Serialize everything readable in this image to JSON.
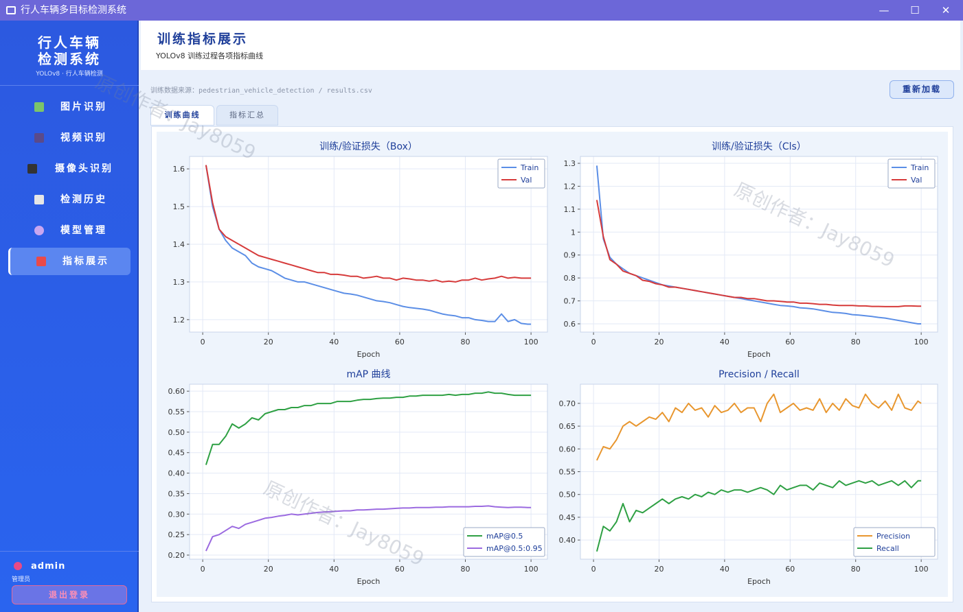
{
  "window": {
    "title": "行人车辆多目标检测系统"
  },
  "sidebar": {
    "brand_line1": "行人车辆",
    "brand_line2": "检测系统",
    "brand_sub": "YOLOv8 · 行人车辆检测",
    "nav": [
      "图片识别",
      "视频识别",
      "摄像头识别",
      "检测历史",
      "模型管理",
      "指标展示"
    ],
    "user": "admin",
    "role": "管理员",
    "logout": "退出登录"
  },
  "header": {
    "title": "训练指标展示",
    "subtitle": "YOLOv8 训练过程各项指标曲线"
  },
  "source": "训练数据来源：pedestrian_vehicle_detection / results.csv",
  "reload": "重新加载",
  "tabs": [
    "训练曲线",
    "指标汇总"
  ],
  "watermark": "原创作者：Jay8059",
  "chart_data": [
    {
      "type": "line",
      "title": "训练/验证损失（Box）",
      "x_label": "Epoch",
      "legend": "upper right",
      "grid": true,
      "x": [
        1,
        3,
        5,
        7,
        9,
        11,
        13,
        15,
        17,
        19,
        21,
        23,
        25,
        27,
        29,
        31,
        33,
        35,
        37,
        39,
        41,
        43,
        45,
        47,
        49,
        51,
        53,
        55,
        57,
        59,
        61,
        63,
        65,
        67,
        69,
        71,
        73,
        75,
        77,
        79,
        81,
        83,
        85,
        87,
        89,
        91,
        93,
        95,
        97,
        99,
        100
      ],
      "xlim": [
        -4,
        105
      ],
      "xticks": [
        0,
        20,
        40,
        60,
        80,
        100
      ],
      "ylim": [
        1.167,
        1.633
      ],
      "yticks": [
        1.2,
        1.3,
        1.4,
        1.5,
        1.6
      ],
      "series": [
        {
          "name": "Train",
          "color": "#5b8ee6",
          "values": [
            1.61,
            1.5,
            1.44,
            1.41,
            1.39,
            1.38,
            1.37,
            1.35,
            1.34,
            1.335,
            1.33,
            1.32,
            1.31,
            1.305,
            1.3,
            1.3,
            1.295,
            1.29,
            1.285,
            1.28,
            1.275,
            1.27,
            1.268,
            1.265,
            1.26,
            1.255,
            1.25,
            1.248,
            1.245,
            1.24,
            1.235,
            1.232,
            1.23,
            1.228,
            1.225,
            1.22,
            1.215,
            1.212,
            1.21,
            1.205,
            1.205,
            1.2,
            1.198,
            1.195,
            1.195,
            1.215,
            1.195,
            1.2,
            1.19,
            1.188,
            1.188
          ]
        },
        {
          "name": "Val",
          "color": "#d63a3a",
          "values": [
            1.61,
            1.51,
            1.44,
            1.42,
            1.41,
            1.4,
            1.39,
            1.38,
            1.37,
            1.365,
            1.36,
            1.355,
            1.35,
            1.345,
            1.34,
            1.335,
            1.33,
            1.325,
            1.325,
            1.32,
            1.32,
            1.318,
            1.315,
            1.315,
            1.31,
            1.312,
            1.315,
            1.31,
            1.31,
            1.305,
            1.31,
            1.308,
            1.305,
            1.305,
            1.302,
            1.305,
            1.3,
            1.302,
            1.3,
            1.305,
            1.305,
            1.31,
            1.305,
            1.308,
            1.31,
            1.315,
            1.31,
            1.312,
            1.31,
            1.31,
            1.31
          ]
        }
      ]
    },
    {
      "type": "line",
      "title": "训练/验证损失（Cls）",
      "x_label": "Epoch",
      "legend": "upper right",
      "grid": true,
      "x": [
        1,
        3,
        5,
        7,
        9,
        11,
        13,
        15,
        17,
        19,
        21,
        23,
        25,
        27,
        29,
        31,
        33,
        35,
        37,
        39,
        41,
        43,
        45,
        47,
        49,
        51,
        53,
        55,
        57,
        59,
        61,
        63,
        65,
        67,
        69,
        71,
        73,
        75,
        77,
        79,
        81,
        83,
        85,
        87,
        89,
        91,
        93,
        95,
        97,
        99,
        100
      ],
      "xlim": [
        -4,
        105
      ],
      "xticks": [
        0,
        20,
        40,
        60,
        80,
        100
      ],
      "ylim": [
        0.564,
        1.33
      ],
      "yticks": [
        0.6,
        0.7,
        0.8,
        0.9,
        1.0,
        1.1,
        1.2,
        1.3
      ],
      "series": [
        {
          "name": "Train",
          "color": "#5b8ee6",
          "values": [
            1.29,
            0.97,
            0.89,
            0.86,
            0.84,
            0.82,
            0.81,
            0.8,
            0.79,
            0.78,
            0.77,
            0.765,
            0.76,
            0.755,
            0.75,
            0.745,
            0.74,
            0.735,
            0.73,
            0.725,
            0.72,
            0.715,
            0.71,
            0.705,
            0.7,
            0.695,
            0.69,
            0.685,
            0.68,
            0.678,
            0.675,
            0.67,
            0.668,
            0.665,
            0.66,
            0.655,
            0.65,
            0.648,
            0.645,
            0.64,
            0.638,
            0.635,
            0.632,
            0.628,
            0.625,
            0.62,
            0.615,
            0.61,
            0.605,
            0.6,
            0.6
          ]
        },
        {
          "name": "Val",
          "color": "#d63a3a",
          "values": [
            1.14,
            0.98,
            0.88,
            0.86,
            0.83,
            0.82,
            0.81,
            0.79,
            0.785,
            0.775,
            0.77,
            0.76,
            0.76,
            0.755,
            0.75,
            0.745,
            0.74,
            0.735,
            0.73,
            0.725,
            0.72,
            0.715,
            0.715,
            0.71,
            0.71,
            0.705,
            0.7,
            0.7,
            0.698,
            0.695,
            0.695,
            0.69,
            0.69,
            0.688,
            0.685,
            0.685,
            0.682,
            0.68,
            0.68,
            0.68,
            0.678,
            0.678,
            0.676,
            0.676,
            0.675,
            0.675,
            0.675,
            0.678,
            0.678,
            0.677,
            0.677
          ]
        }
      ]
    },
    {
      "type": "line",
      "title": "mAP 曲线",
      "x_label": "Epoch",
      "legend": "lower right",
      "grid": true,
      "x": [
        1,
        3,
        5,
        7,
        9,
        11,
        13,
        15,
        17,
        19,
        21,
        23,
        25,
        27,
        29,
        31,
        33,
        35,
        37,
        39,
        41,
        43,
        45,
        47,
        49,
        51,
        53,
        55,
        57,
        59,
        61,
        63,
        65,
        67,
        69,
        71,
        73,
        75,
        77,
        79,
        81,
        83,
        85,
        87,
        89,
        91,
        93,
        95,
        97,
        99,
        100
      ],
      "xlim": [
        -4,
        105
      ],
      "xticks": [
        0,
        20,
        40,
        60,
        80,
        100
      ],
      "ylim": [
        0.19,
        0.617
      ],
      "yticks": [
        {
          "value": 0.2,
          "label": "0.20"
        },
        {
          "value": 0.25,
          "label": "0.25"
        },
        {
          "value": 0.3,
          "label": "0.30"
        },
        {
          "value": 0.35,
          "label": "0.35"
        },
        {
          "value": 0.4,
          "label": "0.40"
        },
        {
          "value": 0.45,
          "label": "0.45"
        },
        {
          "value": 0.5,
          "label": "0.50"
        },
        {
          "value": 0.55,
          "label": "0.55"
        },
        {
          "value": 0.6,
          "label": "0.60"
        }
      ],
      "series": [
        {
          "name": "mAP@0.5",
          "color": "#2ea043",
          "values": [
            0.42,
            0.47,
            0.47,
            0.49,
            0.52,
            0.51,
            0.52,
            0.535,
            0.53,
            0.545,
            0.55,
            0.555,
            0.555,
            0.56,
            0.56,
            0.565,
            0.565,
            0.57,
            0.57,
            0.57,
            0.575,
            0.575,
            0.575,
            0.578,
            0.58,
            0.58,
            0.582,
            0.583,
            0.583,
            0.585,
            0.585,
            0.588,
            0.588,
            0.59,
            0.59,
            0.59,
            0.59,
            0.592,
            0.59,
            0.592,
            0.592,
            0.595,
            0.595,
            0.598,
            0.595,
            0.595,
            0.592,
            0.59,
            0.59,
            0.59,
            0.59
          ]
        },
        {
          "name": "mAP@0.5:0.95",
          "color": "#9b6ae0",
          "values": [
            0.21,
            0.245,
            0.25,
            0.26,
            0.27,
            0.265,
            0.275,
            0.28,
            0.285,
            0.29,
            0.292,
            0.295,
            0.297,
            0.3,
            0.298,
            0.3,
            0.302,
            0.304,
            0.305,
            0.306,
            0.307,
            0.308,
            0.308,
            0.31,
            0.31,
            0.311,
            0.312,
            0.312,
            0.313,
            0.314,
            0.315,
            0.315,
            0.316,
            0.316,
            0.316,
            0.317,
            0.317,
            0.318,
            0.318,
            0.318,
            0.318,
            0.319,
            0.319,
            0.32,
            0.318,
            0.317,
            0.316,
            0.317,
            0.317,
            0.316,
            0.316
          ]
        }
      ]
    },
    {
      "type": "line",
      "title": "Precision / Recall",
      "x_label": "Epoch",
      "legend": "lower right",
      "grid": true,
      "x": [
        1,
        3,
        5,
        7,
        9,
        11,
        13,
        15,
        17,
        19,
        21,
        23,
        25,
        27,
        29,
        31,
        33,
        35,
        37,
        39,
        41,
        43,
        45,
        47,
        49,
        51,
        53,
        55,
        57,
        59,
        61,
        63,
        65,
        67,
        69,
        71,
        73,
        75,
        77,
        79,
        81,
        83,
        85,
        87,
        89,
        91,
        93,
        95,
        97,
        99,
        100
      ],
      "xlim": [
        -4,
        105
      ],
      "xticks": [
        0,
        20,
        40,
        60,
        80,
        100
      ],
      "ylim": [
        0.358,
        0.742
      ],
      "yticks": [
        {
          "value": 0.4,
          "label": "0.40"
        },
        {
          "value": 0.45,
          "label": "0.45"
        },
        {
          "value": 0.5,
          "label": "0.50"
        },
        {
          "value": 0.55,
          "label": "0.55"
        },
        {
          "value": 0.6,
          "label": "0.60"
        },
        {
          "value": 0.65,
          "label": "0.65"
        },
        {
          "value": 0.7,
          "label": "0.70"
        }
      ],
      "series": [
        {
          "name": "Precision",
          "color": "#e8962e",
          "values": [
            0.575,
            0.605,
            0.6,
            0.62,
            0.65,
            0.66,
            0.65,
            0.66,
            0.67,
            0.665,
            0.68,
            0.66,
            0.69,
            0.68,
            0.7,
            0.685,
            0.69,
            0.67,
            0.695,
            0.68,
            0.685,
            0.7,
            0.68,
            0.69,
            0.69,
            0.66,
            0.7,
            0.72,
            0.68,
            0.69,
            0.7,
            0.685,
            0.69,
            0.685,
            0.71,
            0.68,
            0.7,
            0.685,
            0.71,
            0.695,
            0.69,
            0.72,
            0.7,
            0.69,
            0.705,
            0.685,
            0.72,
            0.69,
            0.685,
            0.705,
            0.7
          ]
        },
        {
          "name": "Recall",
          "color": "#2ea043",
          "values": [
            0.375,
            0.43,
            0.42,
            0.44,
            0.48,
            0.44,
            0.465,
            0.46,
            0.47,
            0.48,
            0.49,
            0.48,
            0.49,
            0.495,
            0.49,
            0.5,
            0.495,
            0.505,
            0.5,
            0.51,
            0.505,
            0.51,
            0.51,
            0.505,
            0.51,
            0.515,
            0.51,
            0.5,
            0.52,
            0.51,
            0.515,
            0.52,
            0.52,
            0.51,
            0.525,
            0.52,
            0.515,
            0.53,
            0.52,
            0.525,
            0.53,
            0.525,
            0.53,
            0.52,
            0.525,
            0.53,
            0.52,
            0.53,
            0.515,
            0.53,
            0.53
          ]
        }
      ]
    }
  ]
}
